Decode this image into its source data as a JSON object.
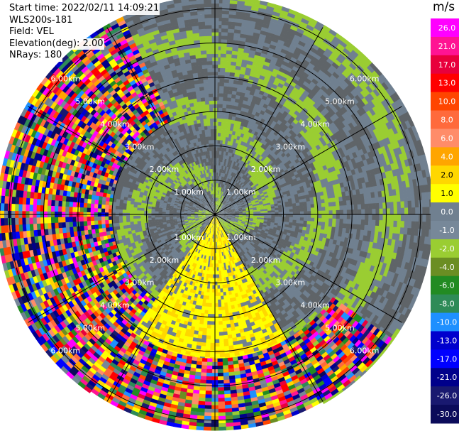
{
  "header": {
    "start_time": "Start time: 2022/02/11 14:09:21",
    "instrument": "WLS200s-181",
    "field": "Field: VEL",
    "elevation": "Elevation(deg): 2.00",
    "nrays": "NRays: 180"
  },
  "chart_data": {
    "type": "heatmap",
    "projection": "polar-ppi",
    "field": "VEL",
    "units": "m/s",
    "elevation_deg": 2.0,
    "nrays": 180,
    "range_rings_km": [
      1,
      2,
      3,
      4,
      5,
      6
    ],
    "range_ring_labels": [
      "1.00km",
      "2.00km",
      "3.00km",
      "4.00km",
      "5.00km",
      "6.00km"
    ],
    "max_range_km": 6.3,
    "colorbar": {
      "title": "m/s",
      "ticks": [
        "26.0",
        "21.0",
        "17.0",
        "13.0",
        "10.0",
        "8.0",
        "6.0",
        "4.0",
        "2.0",
        "1.0",
        "0.0",
        "-1.0",
        "-2.0",
        "-4.0",
        "-6.0",
        "-8.0",
        "-10.0",
        "-13.0",
        "-17.0",
        "-21.0",
        "-26.0",
        "-30.0"
      ],
      "colors": [
        "#ff00ff",
        "#ff1493",
        "#e8003c",
        "#ff0000",
        "#ff4500",
        "#ff6a3c",
        "#ff8c69",
        "#ffa500",
        "#ffd700",
        "#ffff00",
        "#708090",
        "#778899",
        "#9acd32",
        "#6b8e23",
        "#228b22",
        "#2e8b57",
        "#1e90ff",
        "#0000cd",
        "#0000ff",
        "#00008b",
        "#191970",
        "#0b0b5a"
      ]
    },
    "regions": [
      {
        "from_deg": 0,
        "to_deg": 150,
        "r0_km": 0,
        "r1_km": 6.3,
        "pattern": "mixed_gray_green"
      },
      {
        "from_deg": 150,
        "to_deg": 180,
        "r0_km": 0,
        "r1_km": 4.2,
        "pattern": "positive_yellow"
      },
      {
        "from_deg": 180,
        "to_deg": 215,
        "r0_km": 0,
        "r1_km": 4.8,
        "pattern": "positive_yellow"
      },
      {
        "from_deg": 125,
        "to_deg": 225,
        "r0_km": 4.2,
        "r1_km": 6.3,
        "pattern": "noise"
      },
      {
        "from_deg": 215,
        "to_deg": 335,
        "r0_km": 3.0,
        "r1_km": 6.3,
        "pattern": "noise"
      },
      {
        "from_deg": 215,
        "to_deg": 360,
        "r0_km": 0,
        "r1_km": 3.0,
        "pattern": "mixed_gray_green"
      },
      {
        "from_deg": 335,
        "to_deg": 360,
        "r0_km": 3.0,
        "r1_km": 6.3,
        "pattern": "mixed_gray_green"
      }
    ]
  }
}
